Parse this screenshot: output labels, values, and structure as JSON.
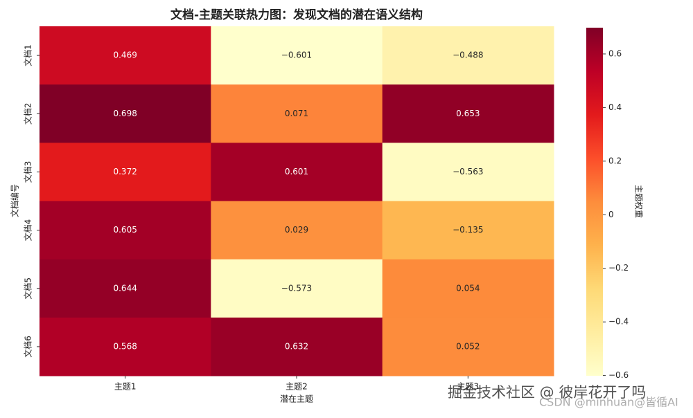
{
  "chart_data": {
    "type": "heatmap",
    "title": "文档-主题关联热力图：发现文档的潜在语义结构",
    "xlabel": "潜在主题",
    "ylabel": "文档编号",
    "colorbar_label": "主题权重",
    "x_categories": [
      "主题1",
      "主题2",
      "主题3"
    ],
    "y_categories": [
      "文档1",
      "文档2",
      "文档3",
      "文档4",
      "文档5",
      "文档6"
    ],
    "values": [
      [
        0.469,
        -0.601,
        -0.488
      ],
      [
        0.698,
        0.071,
        0.653
      ],
      [
        0.372,
        0.601,
        -0.563
      ],
      [
        0.605,
        0.029,
        -0.135
      ],
      [
        0.644,
        -0.573,
        0.054
      ],
      [
        0.568,
        0.632,
        0.052
      ]
    ],
    "value_labels": [
      [
        "0.469",
        "−0.601",
        "−0.488"
      ],
      [
        "0.698",
        "0.071",
        "0.653"
      ],
      [
        "0.372",
        "0.601",
        "−0.563"
      ],
      [
        "0.605",
        "0.029",
        "−0.135"
      ],
      [
        "0.644",
        "−0.573",
        "0.054"
      ],
      [
        "0.568",
        "0.632",
        "0.052"
      ]
    ],
    "colormap": "YlOrRd",
    "clim": [
      -0.601,
      0.698
    ],
    "cticks": [
      {
        "value": -0.6,
        "label": "−0.6"
      },
      {
        "value": -0.4,
        "label": "−0.4"
      },
      {
        "value": -0.2,
        "label": "−0.2"
      },
      0.0,
      0.2,
      0.4,
      0.6
    ]
  },
  "watermarks": [
    "掘金技术社区 @ 彼岸花开了吗",
    "CSDN @minhuan@皆循AI"
  ]
}
